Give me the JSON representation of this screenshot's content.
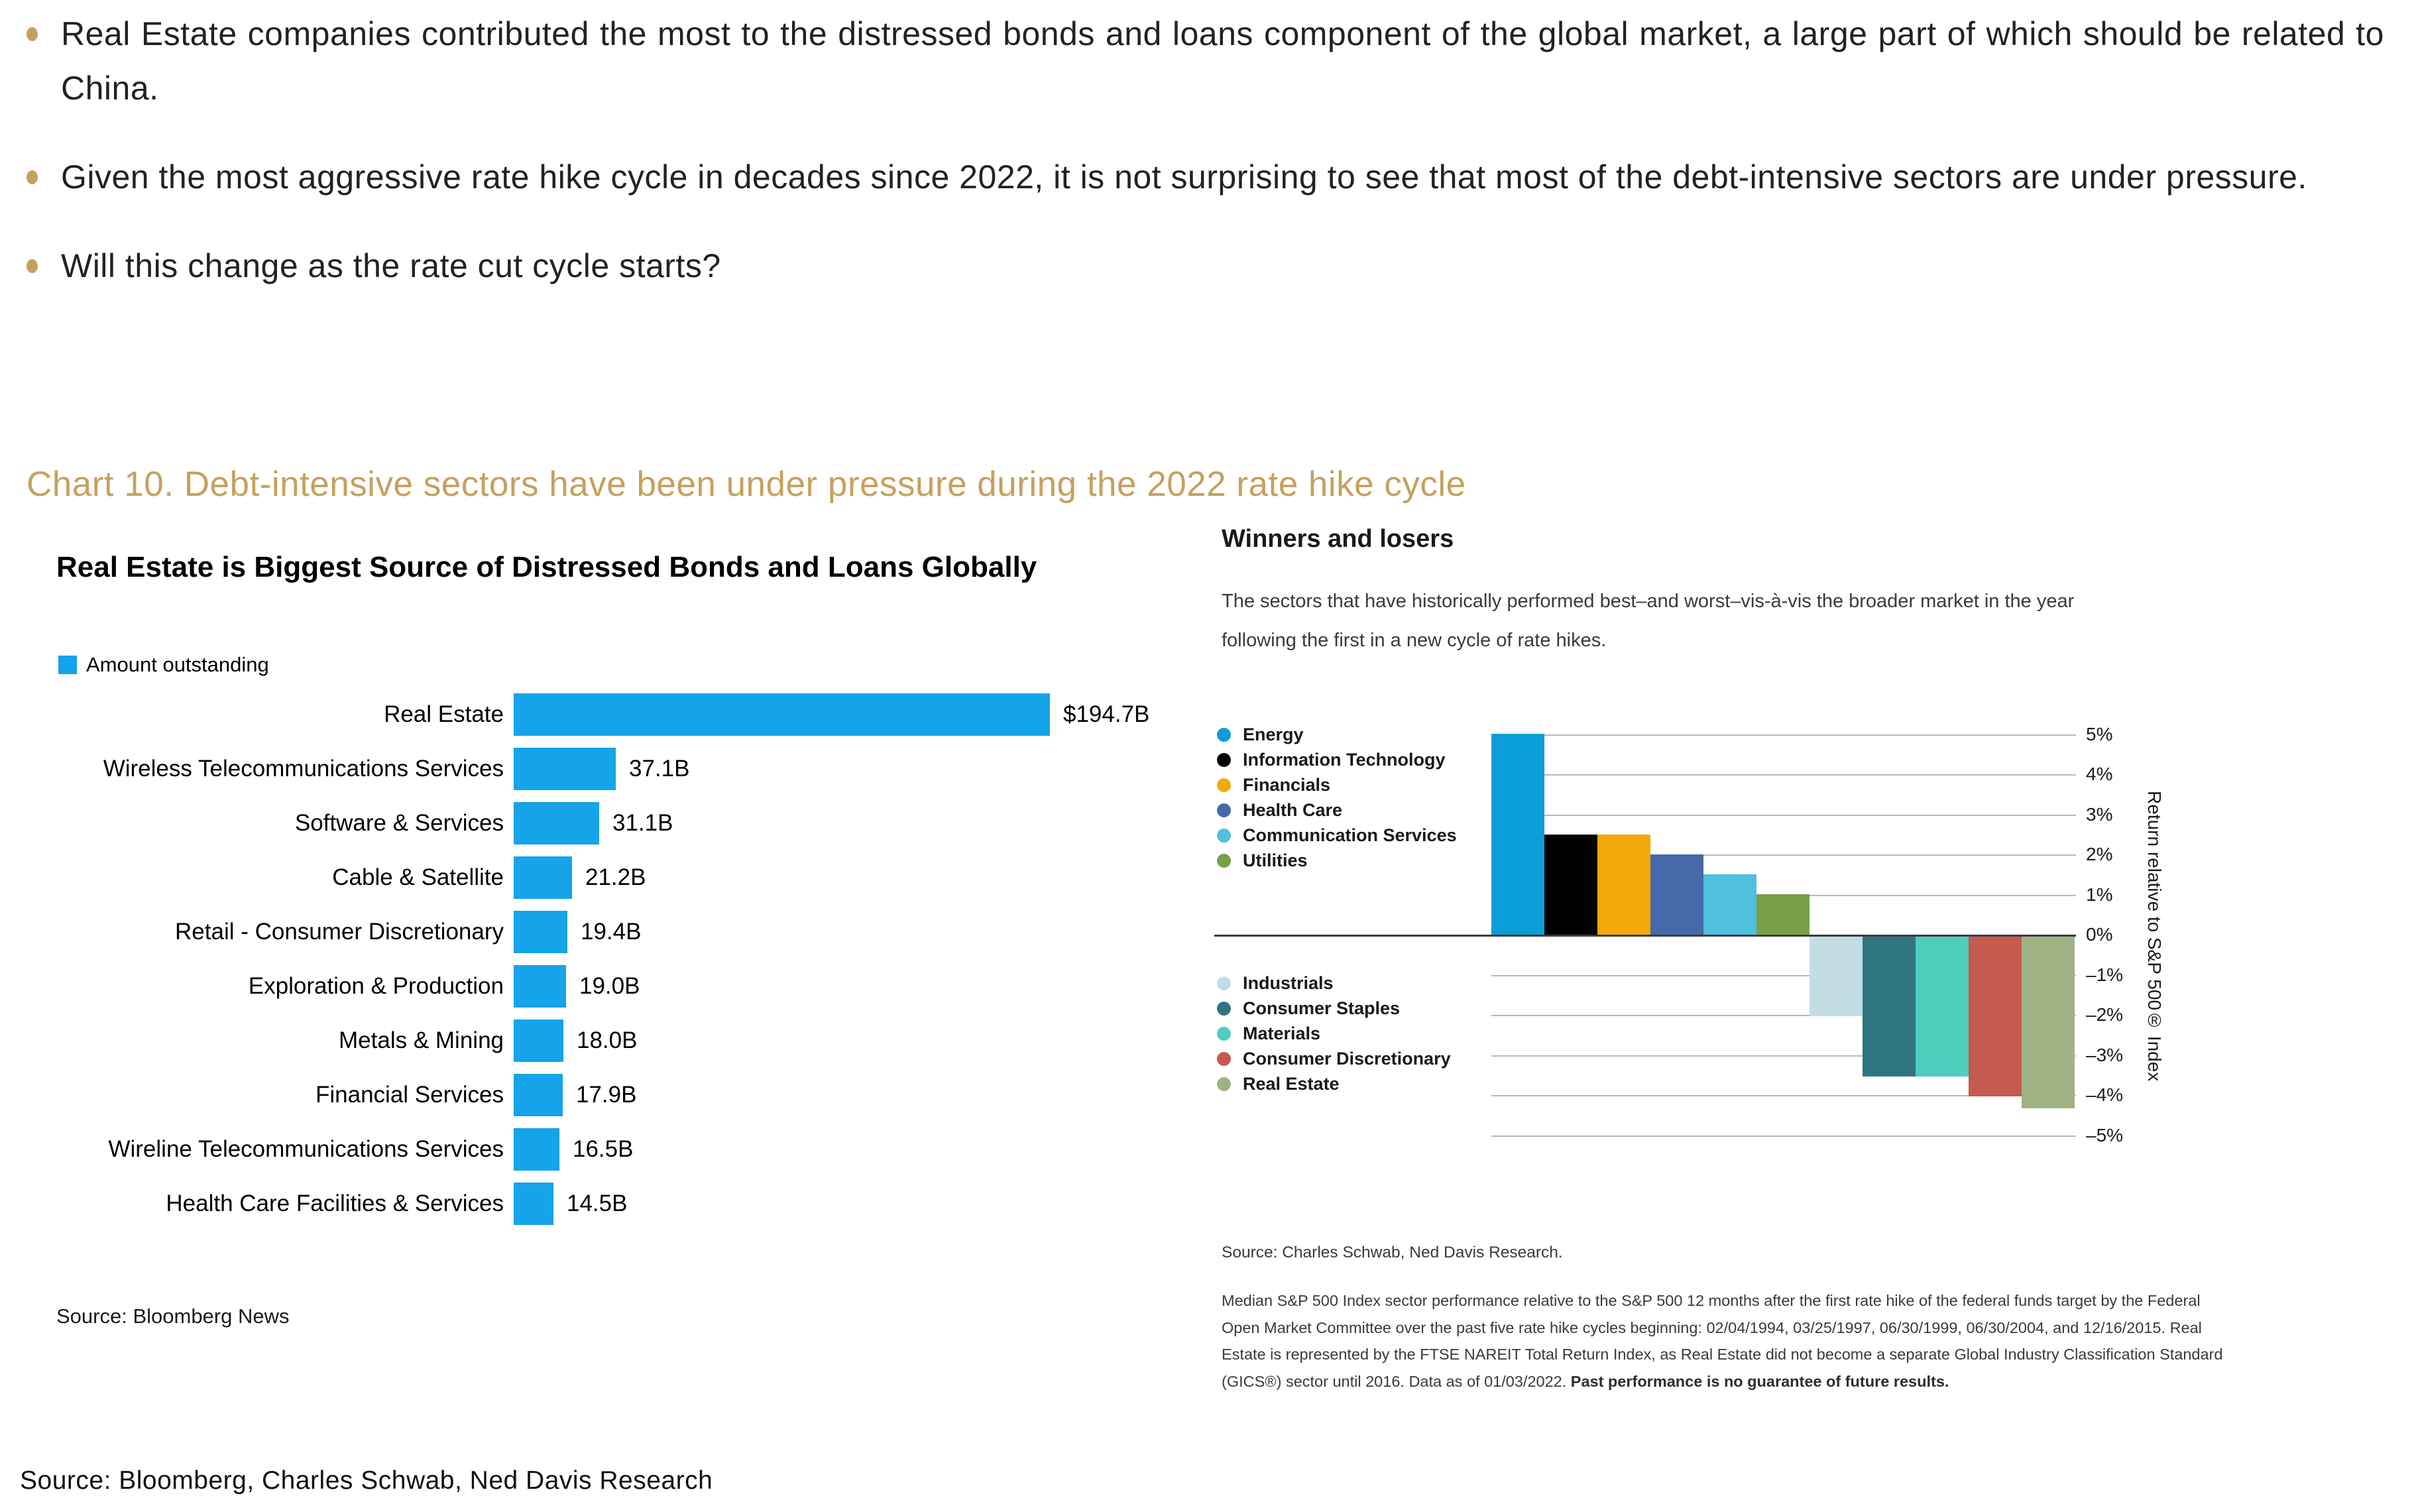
{
  "accent_tan": "#C5A15E",
  "bullets": [
    {
      "text": "Real Estate companies contributed the most to the distressed bonds and loans component of the global market, a large part of which should be related to China."
    },
    {
      "text": "Given the most aggressive rate hike cycle in decades since 2022, it is not surprising to see that most of the debt-intensive sectors are under pressure."
    },
    {
      "text": "Will this change as the rate cut cycle starts?"
    }
  ],
  "section_title": "Chart 10. Debt-intensive sectors have been under pressure during the 2022 rate hike cycle",
  "left_chart": {
    "title": "Real Estate is Biggest Source of Distressed Bonds and Loans Globally",
    "legend_label": "Amount outstanding",
    "source": "Source: Bloomberg News"
  },
  "right_chart": {
    "title": "Winners and losers",
    "description": "The sectors that have historically performed best–and worst–vis-à-vis the broader market in the year following the first in a new cycle of rate hikes.",
    "source": "Source: Charles Schwab, Ned Davis Research.",
    "footnote_text": "Median S&P 500 Index sector performance relative to the S&P 500 12 months after the first rate hike of the federal funds target by the Federal Open Market Committee over the past five rate hike cycles beginning: 02/04/1994, 03/25/1997, 06/30/1999, 06/30/2004, and 12/16/2015. Real Estate is represented by the FTSE NAREIT Total Return Index, as Real Estate did not become a separate Global Industry Classification Standard (GICS®) sector until 2016. Data as of 01/03/2022. ",
    "footnote_bold": "Past performance is no guarantee of future results."
  },
  "footer_source": "Source: Bloomberg, Charles Schwab, Ned Davis Research",
  "chart_data": [
    {
      "type": "bar",
      "orientation": "horizontal",
      "title": "Real Estate is Biggest Source of Distressed Bonds and Loans Globally",
      "legend": [
        "Amount outstanding"
      ],
      "bar_color": "#15A3EA",
      "categories": [
        "Real Estate",
        "Wireless Telecommunications Services",
        "Software & Services",
        "Cable & Satellite",
        "Retail - Consumer Discretionary",
        "Exploration & Production",
        "Metals & Mining",
        "Financial Services",
        "Wireline Telecommunications Services",
        "Health Care Facilities & Services"
      ],
      "values": [
        194.7,
        37.1,
        31.1,
        21.2,
        19.4,
        19.0,
        18.0,
        17.9,
        16.5,
        14.5
      ],
      "value_labels": [
        "$194.7B",
        "37.1B",
        "31.1B",
        "21.2B",
        "19.4B",
        "19.0B",
        "18.0B",
        "17.9B",
        "16.5B",
        "14.5B"
      ],
      "unit": "billions USD",
      "xlim": [
        0,
        194.7
      ],
      "source": "Source: Bloomberg News"
    },
    {
      "type": "bar",
      "orientation": "vertical",
      "title": "Winners and losers",
      "ylabel": "Return relative to S&P 500® Index",
      "ylim": [
        -5,
        5
      ],
      "grid": true,
      "tick_step": 1,
      "y_tick_labels": [
        "5%",
        "4%",
        "3%",
        "2%",
        "1%",
        "0%",
        "–1%",
        "–2%",
        "–3%",
        "–4%",
        "–5%"
      ],
      "legend_position": "left, split above/below zero line",
      "series": [
        {
          "name": "Energy",
          "value": 5.0,
          "color": "#0B9ED9"
        },
        {
          "name": "Information Technology",
          "value": 2.5,
          "color": "#000000"
        },
        {
          "name": "Financials",
          "value": 2.5,
          "color": "#F2A90A"
        },
        {
          "name": "Health Care",
          "value": 2.0,
          "color": "#4569A9"
        },
        {
          "name": "Communication Services",
          "value": 1.5,
          "color": "#4FC0DE"
        },
        {
          "name": "Utilities",
          "value": 1.0,
          "color": "#79A048"
        },
        {
          "name": "Industrials",
          "value": -2.0,
          "color": "#C3DDE7"
        },
        {
          "name": "Consumer Staples",
          "value": -3.5,
          "color": "#2F7580"
        },
        {
          "name": "Materials",
          "value": -3.5,
          "color": "#4FCEC0"
        },
        {
          "name": "Consumer Discretionary",
          "value": -4.0,
          "color": "#C55B4E"
        },
        {
          "name": "Real Estate",
          "value": -4.3,
          "color": "#A0B284"
        }
      ]
    }
  ]
}
